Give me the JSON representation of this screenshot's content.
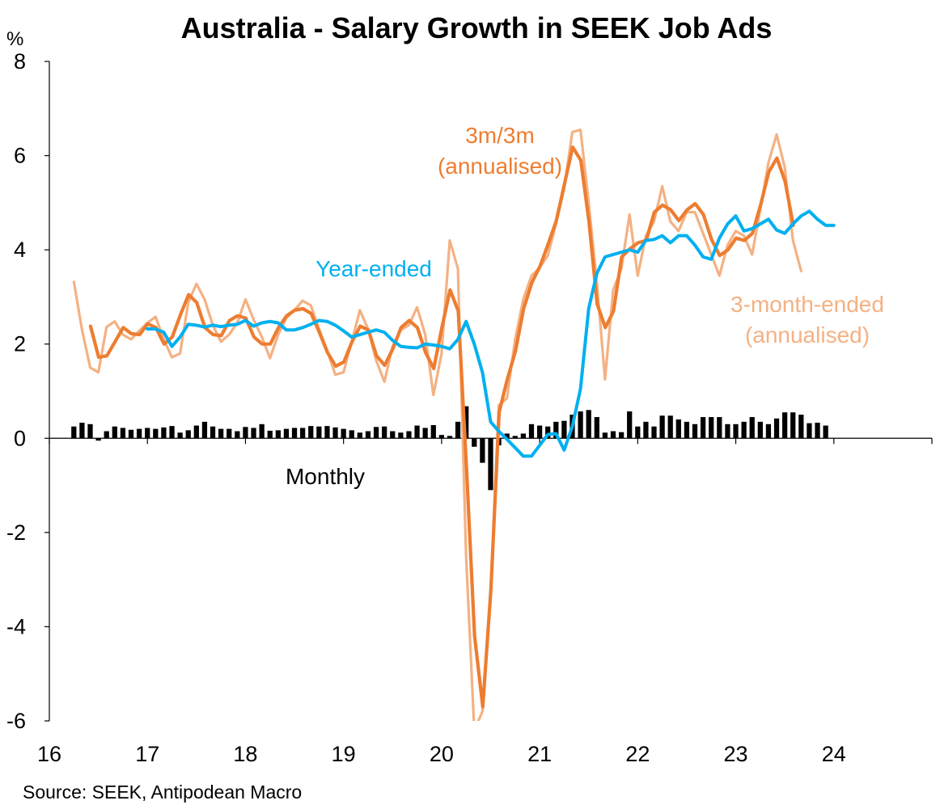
{
  "chart_data": {
    "type": "line",
    "title": "Australia - Salary Growth in SEEK Job Ads",
    "ylabel": "%",
    "source": "Source: SEEK, Antipodean Macro",
    "ylim": [
      -6,
      8
    ],
    "yticks": [
      -6,
      -4,
      -2,
      0,
      2,
      4,
      6,
      8
    ],
    "xlim": [
      2016,
      2025
    ],
    "xticks": [
      {
        "value": 2016,
        "label": "16"
      },
      {
        "value": 2017,
        "label": "17"
      },
      {
        "value": 2018,
        "label": "18"
      },
      {
        "value": 2019,
        "label": "19"
      },
      {
        "value": 2020,
        "label": "20"
      },
      {
        "value": 2021,
        "label": "21"
      },
      {
        "value": 2022,
        "label": "22"
      },
      {
        "value": 2023,
        "label": "23"
      },
      {
        "value": 2024,
        "label": "24"
      }
    ],
    "annotations": {
      "three_month_3m_line1": "3m/3m",
      "three_month_3m_line2": "(annualised)",
      "year_ended": "Year-ended",
      "three_month_ended_line1": "3-month-ended",
      "three_month_ended_line2": "(annualised)",
      "monthly": "Monthly"
    },
    "colors": {
      "three_month_ended": "#f4b183",
      "three_m_three_m": "#ed7d31",
      "year_ended": "#00b0f0",
      "monthly": "#000000"
    },
    "monthly_bars": {
      "x_start": 2016.25,
      "x_step": 0.08333,
      "values": [
        0.25,
        0.33,
        0.3,
        -0.05,
        0.15,
        0.25,
        0.22,
        0.18,
        0.2,
        0.22,
        0.2,
        0.23,
        0.26,
        0.12,
        0.17,
        0.27,
        0.35,
        0.25,
        0.2,
        0.2,
        0.15,
        0.24,
        0.22,
        0.3,
        0.16,
        0.17,
        0.2,
        0.22,
        0.22,
        0.26,
        0.25,
        0.26,
        0.23,
        0.2,
        0.17,
        0.12,
        0.15,
        0.24,
        0.25,
        0.15,
        0.12,
        0.15,
        0.27,
        0.22,
        0.28,
        0.07,
        0.05,
        0.35,
        0.68,
        -0.18,
        -0.52,
        -1.1,
        -0.15,
        0.1,
        0.05,
        0.1,
        0.3,
        0.27,
        0.25,
        0.35,
        0.37,
        0.5,
        0.57,
        0.6,
        0.45,
        0.12,
        0.15,
        0.13,
        0.57,
        0.25,
        0.35,
        0.25,
        0.48,
        0.48,
        0.4,
        0.35,
        0.3,
        0.45,
        0.45,
        0.45,
        0.3,
        0.3,
        0.35,
        0.45,
        0.35,
        0.3,
        0.42,
        0.55,
        0.55,
        0.5,
        0.32,
        0.33,
        0.27
      ]
    },
    "series": [
      {
        "name": "3-month-ended (annualised)",
        "x_start": 2016.25,
        "x_step": 0.08333,
        "values": [
          3.32,
          2.3,
          1.5,
          1.4,
          2.36,
          2.48,
          2.2,
          2.1,
          2.28,
          2.45,
          2.58,
          2.1,
          1.72,
          1.8,
          2.88,
          3.28,
          2.95,
          2.4,
          2.05,
          2.2,
          2.45,
          2.95,
          2.52,
          2.15,
          1.7,
          2.2,
          2.55,
          2.72,
          2.92,
          2.82,
          2.32,
          1.86,
          1.35,
          1.4,
          2.05,
          2.72,
          2.32,
          1.65,
          1.2,
          1.95,
          2.3,
          2.4,
          2.78,
          2.2,
          0.92,
          1.8,
          4.2,
          3.6,
          -2.5,
          -6.2,
          -5.8,
          -3.3,
          0.7,
          0.85,
          2.1,
          2.95,
          3.45,
          3.62,
          3.88,
          4.55,
          5.3,
          6.5,
          6.55,
          5.0,
          3.3,
          1.25,
          3.15,
          3.6,
          4.75,
          3.45,
          4.3,
          4.6,
          5.35,
          4.6,
          4.4,
          4.8,
          4.8,
          4.35,
          3.9,
          3.45,
          4.1,
          4.4,
          4.3,
          3.9,
          4.85,
          5.85,
          6.45,
          5.75,
          4.2,
          3.55
        ]
      },
      {
        "name": "3m/3m (annualised)",
        "x_start": 2016.42,
        "x_step": 0.08333,
        "values": [
          2.38,
          1.72,
          1.75,
          2.05,
          2.35,
          2.22,
          2.2,
          2.43,
          2.35,
          2.0,
          2.15,
          2.62,
          3.05,
          2.88,
          2.35,
          2.2,
          2.18,
          2.5,
          2.6,
          2.55,
          2.15,
          2.0,
          2.0,
          2.35,
          2.6,
          2.72,
          2.75,
          2.65,
          2.25,
          1.82,
          1.53,
          1.62,
          2.05,
          2.38,
          2.3,
          1.75,
          1.55,
          1.9,
          2.35,
          2.5,
          2.35,
          1.82,
          1.48,
          2.35,
          3.15,
          2.7,
          -0.6,
          -4.2,
          -5.7,
          -3.2,
          0.55,
          1.25,
          1.85,
          2.75,
          3.3,
          3.65,
          4.12,
          4.62,
          5.4,
          6.18,
          5.9,
          4.6,
          2.85,
          2.35,
          2.7,
          3.85,
          4.02,
          4.15,
          4.2,
          4.8,
          4.95,
          4.85,
          4.62,
          4.85,
          4.98,
          4.75,
          4.22,
          3.88,
          4.0,
          4.25,
          4.2,
          4.35,
          4.95,
          5.65,
          5.95,
          5.45,
          4.52
        ]
      },
      {
        "name": "Year-ended",
        "x_start": 2017.0,
        "x_step": 0.08333,
        "values": [
          2.32,
          2.32,
          2.25,
          1.95,
          2.15,
          2.42,
          2.4,
          2.36,
          2.4,
          2.37,
          2.4,
          2.42,
          2.5,
          2.38,
          2.45,
          2.48,
          2.45,
          2.3,
          2.3,
          2.35,
          2.42,
          2.5,
          2.48,
          2.4,
          2.28,
          2.15,
          2.2,
          2.25,
          2.3,
          2.25,
          2.08,
          1.95,
          1.93,
          1.92,
          2.0,
          1.98,
          1.95,
          1.9,
          2.1,
          2.48,
          2.0,
          1.4,
          0.35,
          0.15,
          -0.02,
          -0.2,
          -0.38,
          -0.38,
          -0.15,
          0.08,
          0.1,
          -0.25,
          0.25,
          1.05,
          2.75,
          3.5,
          3.85,
          3.9,
          3.95,
          4.0,
          3.95,
          4.2,
          4.22,
          4.3,
          4.15,
          4.3,
          4.3,
          4.1,
          3.85,
          3.8,
          4.25,
          4.55,
          4.72,
          4.4,
          4.45,
          4.55,
          4.65,
          4.42,
          4.35,
          4.55,
          4.72,
          4.82,
          4.65,
          4.52,
          4.52
        ]
      }
    ]
  }
}
